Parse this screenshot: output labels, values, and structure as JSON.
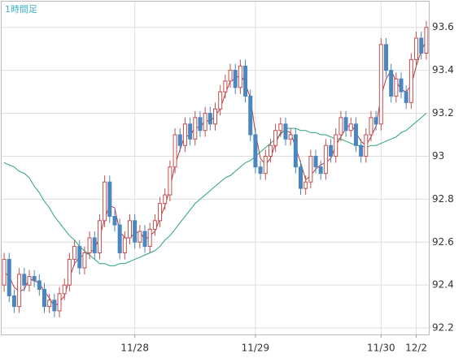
{
  "chart_data": {
    "type": "candlestick",
    "title": "1時間足",
    "categories": [
      null,
      null,
      null,
      null,
      null,
      null,
      null,
      null,
      null,
      null,
      null,
      null,
      null,
      null,
      null,
      null,
      null,
      null,
      null,
      null,
      null,
      null,
      null,
      null,
      null,
      null,
      "11/28",
      null,
      null,
      null,
      null,
      null,
      null,
      null,
      null,
      null,
      null,
      null,
      null,
      null,
      null,
      null,
      null,
      null,
      null,
      null,
      null,
      null,
      null,
      null,
      "11/29",
      null,
      null,
      null,
      null,
      null,
      null,
      null,
      null,
      null,
      null,
      null,
      null,
      null,
      null,
      null,
      null,
      null,
      null,
      null,
      null,
      null,
      null,
      null,
      null,
      "11/30",
      null,
      null,
      null,
      null,
      null,
      null,
      "12/2",
      null,
      null
    ],
    "open": [
      92.4,
      92.52,
      92.35,
      92.3,
      92.45,
      92.4,
      92.44,
      92.42,
      92.38,
      92.3,
      92.33,
      92.28,
      92.36,
      92.4,
      92.52,
      92.58,
      92.48,
      92.55,
      92.62,
      92.55,
      92.7,
      92.88,
      92.72,
      92.68,
      92.55,
      92.62,
      92.7,
      92.6,
      92.65,
      92.58,
      92.66,
      92.7,
      92.78,
      92.82,
      92.95,
      93.1,
      93.05,
      93.15,
      93.08,
      93.18,
      93.12,
      93.2,
      93.15,
      93.22,
      93.3,
      93.35,
      93.4,
      93.32,
      93.42,
      93.28,
      93.1,
      92.95,
      92.92,
      93.0,
      93.05,
      93.12,
      93.15,
      93.08,
      93.1,
      92.95,
      92.85,
      92.88,
      93.0,
      92.95,
      92.92,
      93.05,
      93.0,
      93.1,
      93.18,
      93.12,
      93.15,
      93.05,
      93.0,
      93.1,
      93.18,
      93.15,
      93.52,
      93.4,
      93.28,
      93.36,
      93.3,
      93.25,
      93.45,
      93.55,
      93.48
    ],
    "high": [
      92.55,
      92.55,
      92.38,
      92.48,
      92.48,
      92.47,
      92.47,
      92.45,
      92.41,
      92.36,
      92.36,
      92.39,
      92.43,
      92.55,
      92.61,
      92.61,
      92.58,
      92.65,
      92.65,
      92.73,
      92.91,
      92.91,
      92.75,
      92.71,
      92.65,
      92.73,
      92.73,
      92.68,
      92.68,
      92.69,
      92.73,
      92.81,
      92.85,
      92.98,
      93.13,
      93.13,
      93.18,
      93.18,
      93.21,
      93.21,
      93.23,
      93.23,
      93.25,
      93.33,
      93.38,
      93.43,
      93.43,
      93.45,
      93.45,
      93.31,
      93.13,
      92.98,
      93.03,
      93.08,
      93.15,
      93.18,
      93.18,
      93.13,
      93.13,
      92.98,
      92.91,
      93.03,
      93.03,
      92.98,
      93.08,
      93.08,
      93.13,
      93.21,
      93.21,
      93.18,
      93.18,
      93.08,
      93.13,
      93.21,
      93.21,
      93.55,
      93.55,
      93.43,
      93.39,
      93.39,
      93.33,
      93.48,
      93.58,
      93.58,
      93.63
    ],
    "low": [
      92.37,
      92.32,
      92.27,
      92.27,
      92.37,
      92.37,
      92.39,
      92.35,
      92.27,
      92.27,
      92.25,
      92.25,
      92.33,
      92.37,
      92.49,
      92.45,
      92.45,
      92.52,
      92.52,
      92.52,
      92.67,
      92.69,
      92.65,
      92.52,
      92.52,
      92.59,
      92.57,
      92.57,
      92.55,
      92.55,
      92.63,
      92.67,
      92.75,
      92.79,
      92.92,
      93.02,
      93.02,
      93.05,
      93.05,
      93.09,
      93.09,
      93.12,
      93.12,
      93.19,
      93.27,
      93.32,
      93.29,
      93.29,
      93.25,
      93.07,
      92.92,
      92.89,
      92.89,
      92.97,
      93.02,
      93.09,
      93.05,
      93.05,
      92.92,
      92.82,
      92.82,
      92.85,
      92.92,
      92.89,
      92.89,
      92.97,
      92.97,
      93.07,
      93.09,
      93.09,
      93.02,
      92.97,
      92.97,
      93.07,
      93.12,
      93.12,
      93.37,
      93.25,
      93.25,
      93.27,
      93.22,
      93.22,
      93.42,
      93.45,
      93.45
    ],
    "close": [
      92.52,
      92.35,
      92.3,
      92.45,
      92.4,
      92.44,
      92.42,
      92.38,
      92.3,
      92.33,
      92.28,
      92.36,
      92.4,
      92.52,
      92.58,
      92.48,
      92.55,
      92.62,
      92.55,
      92.7,
      92.88,
      92.72,
      92.68,
      92.55,
      92.62,
      92.7,
      92.6,
      92.65,
      92.58,
      92.66,
      92.7,
      92.78,
      92.82,
      92.95,
      93.1,
      93.05,
      93.15,
      93.08,
      93.18,
      93.12,
      93.2,
      93.15,
      93.22,
      93.3,
      93.35,
      93.4,
      93.32,
      93.42,
      93.28,
      93.1,
      92.95,
      92.92,
      93.0,
      93.05,
      93.12,
      93.15,
      93.08,
      93.1,
      92.95,
      92.85,
      92.88,
      93.0,
      92.95,
      92.92,
      93.05,
      93.0,
      93.1,
      93.18,
      93.12,
      93.15,
      93.05,
      93.0,
      93.1,
      93.18,
      93.15,
      93.52,
      93.4,
      93.28,
      93.36,
      93.3,
      93.25,
      93.45,
      93.55,
      93.48,
      93.6
    ],
    "up_color": "#c0504d",
    "down_color": "#4a86c0",
    "lines": [
      {
        "color": "#b03a48",
        "values": [
          92.46,
          92.44,
          92.39,
          92.37,
          92.38,
          92.43,
          92.42,
          92.41,
          92.37,
          92.34,
          92.3,
          92.32,
          92.35,
          92.43,
          92.5,
          92.53,
          92.54,
          92.55,
          92.57,
          92.62,
          92.71,
          92.77,
          92.76,
          92.65,
          92.62,
          92.62,
          92.64,
          92.65,
          92.61,
          92.63,
          92.65,
          92.71,
          92.77,
          92.85,
          92.96,
          93.03,
          93.1,
          93.09,
          93.14,
          93.13,
          93.17,
          93.16,
          93.19,
          93.22,
          93.29,
          93.35,
          93.36,
          93.38,
          93.34,
          93.27,
          93.11,
          92.99,
          92.96,
          92.99,
          93.06,
          93.11,
          93.12,
          93.11,
          93.04,
          92.97,
          92.89,
          92.91,
          92.94,
          92.96,
          92.97,
          92.99,
          93.05,
          93.09,
          93.13,
          93.15,
          93.11,
          93.07,
          93.05,
          93.09,
          93.14,
          93.28,
          93.36,
          93.4,
          93.35,
          93.31,
          93.3,
          93.33,
          93.42,
          93.49,
          93.54
        ]
      },
      {
        "color": "#2aa37a",
        "values": [
          92.97,
          92.96,
          92.95,
          92.93,
          92.92,
          92.9,
          92.86,
          92.83,
          92.79,
          92.76,
          92.72,
          92.69,
          92.66,
          92.63,
          92.61,
          92.58,
          92.56,
          92.54,
          92.52,
          92.5,
          92.5,
          92.49,
          92.49,
          92.5,
          92.5,
          92.51,
          92.52,
          92.53,
          92.54,
          92.55,
          92.56,
          92.58,
          92.61,
          92.63,
          92.66,
          92.69,
          92.72,
          92.75,
          92.78,
          92.8,
          92.82,
          92.84,
          92.86,
          92.88,
          92.9,
          92.91,
          92.93,
          92.95,
          92.97,
          92.98,
          93.0,
          93.02,
          93.04,
          93.06,
          93.08,
          93.1,
          93.13,
          93.13,
          93.13,
          93.12,
          93.12,
          93.11,
          93.11,
          93.1,
          93.1,
          93.09,
          93.08,
          93.08,
          93.07,
          93.06,
          93.05,
          93.05,
          93.04,
          93.05,
          93.05,
          93.06,
          93.07,
          93.08,
          93.09,
          93.11,
          93.12,
          93.14,
          93.16,
          93.18,
          93.2
        ]
      }
    ],
    "ylim": [
      92.17,
      93.72
    ],
    "yticks": [
      92.2,
      92.4,
      92.6,
      92.8,
      93,
      93.2,
      93.4,
      93.6
    ],
    "grid": true
  }
}
